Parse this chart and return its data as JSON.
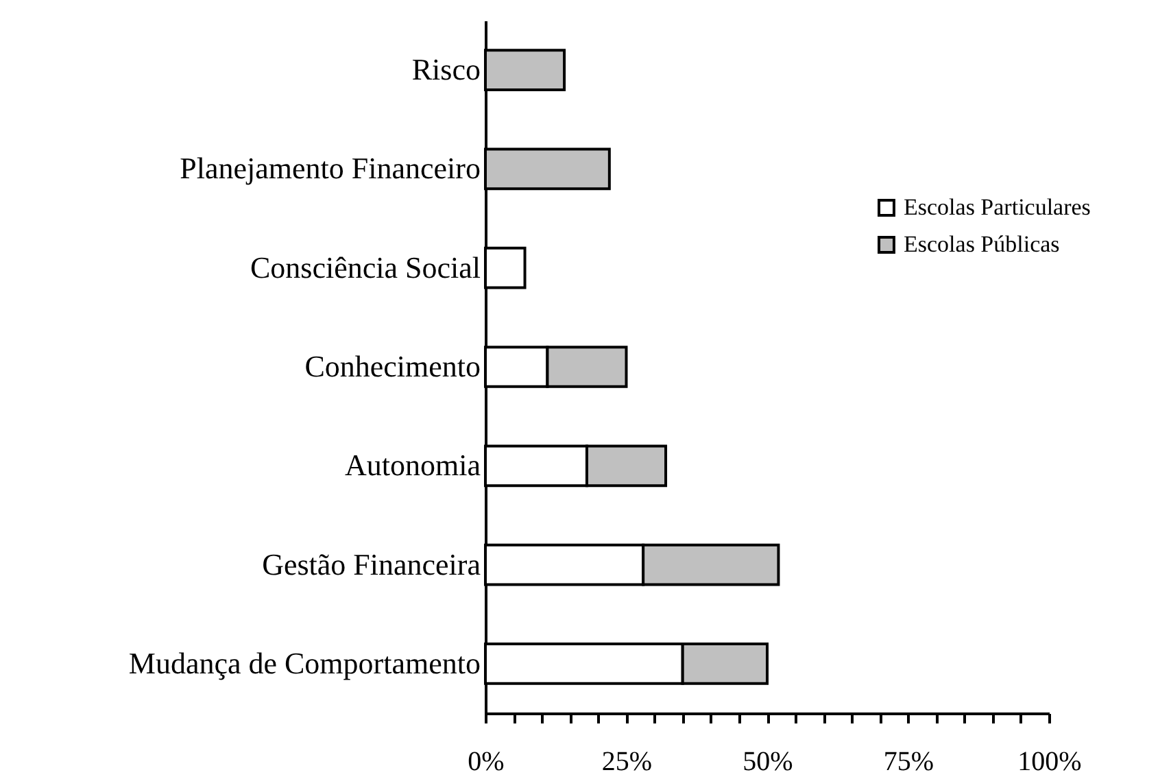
{
  "chart_data": {
    "type": "bar",
    "orientation": "horizontal",
    "stacked": true,
    "categories": [
      "Risco",
      "Planejamento Financeiro",
      "Consciência Social",
      "Conhecimento",
      "Autonomia",
      "Gestão Financeira",
      "Mudança de Comportamento"
    ],
    "series": [
      {
        "name": "Escolas Particulares",
        "color": "#ffffff",
        "values": [
          null,
          null,
          7,
          11,
          18,
          28,
          35
        ]
      },
      {
        "name": "Escolas Públicas",
        "color": "#c0c0c0",
        "values": [
          14,
          22,
          null,
          14,
          14,
          24,
          15
        ]
      }
    ],
    "xlim": [
      0,
      100
    ],
    "xticks": [
      {
        "value": 0,
        "label": "0%"
      },
      {
        "value": 5,
        "label": null
      },
      {
        "value": 10,
        "label": null
      },
      {
        "value": 15,
        "label": null
      },
      {
        "value": 20,
        "label": null
      },
      {
        "value": 25,
        "label": "25%"
      },
      {
        "value": 30,
        "label": null
      },
      {
        "value": 35,
        "label": null
      },
      {
        "value": 40,
        "label": null
      },
      {
        "value": 45,
        "label": null
      },
      {
        "value": 50,
        "label": "50%"
      },
      {
        "value": 55,
        "label": null
      },
      {
        "value": 60,
        "label": null
      },
      {
        "value": 65,
        "label": null
      },
      {
        "value": 70,
        "label": null
      },
      {
        "value": 75,
        "label": "75%"
      },
      {
        "value": 80,
        "label": null
      },
      {
        "value": 85,
        "label": null
      },
      {
        "value": 90,
        "label": null
      },
      {
        "value": 95,
        "label": null
      },
      {
        "value": 100,
        "label": "100%"
      }
    ],
    "legend": "right"
  }
}
